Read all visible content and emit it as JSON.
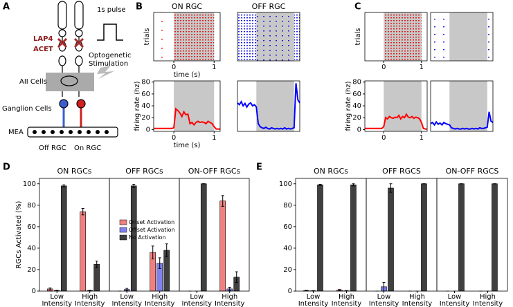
{
  "panel_labels": [
    "A",
    "B",
    "C",
    "D",
    "E"
  ],
  "diagram": {
    "pulse_label": "1s pulse",
    "drug_1": "LAP4",
    "drug_2": "ACET",
    "stim_1": "Optogenetic",
    "stim_2": "Stimulation",
    "aii": "AII Cells",
    "ganglion": "Ganglion Cells",
    "mea": "MEA",
    "off_rgc": "Off RGC",
    "on_rgc": "On RGC"
  },
  "chart_data": [
    {
      "type": "raster",
      "title": "ON RGC",
      "xlabel": "time (s)",
      "ylabel": "trials",
      "xlim": [
        -0.5,
        1.15
      ],
      "xticks": [
        0,
        1
      ],
      "stimulus": [
        0,
        1
      ],
      "color": "#e02020"
    },
    {
      "type": "raster",
      "title": "OFF RGC",
      "xlim": [
        -0.5,
        1.15
      ],
      "stimulus": [
        0,
        1
      ],
      "color": "#2020e0"
    },
    {
      "type": "raster",
      "ylabel": "trials",
      "xlim": [
        -0.5,
        1.15
      ],
      "xticks": [
        0,
        1
      ],
      "stimulus": [
        0,
        1
      ],
      "color": "#e02020"
    },
    {
      "type": "raster",
      "xlim": [
        -0.5,
        1.15
      ],
      "stimulus": [
        0,
        1
      ],
      "color": "#2020e0"
    },
    {
      "type": "line",
      "xlabel": "time (s)",
      "ylabel": "firing rate (hz)",
      "xlim": [
        -0.5,
        1.15
      ],
      "ylim": [
        -3,
        82
      ],
      "xticks": [
        0,
        1
      ],
      "yticks": [
        0,
        20,
        40,
        60,
        80
      ],
      "stimulus": [
        0,
        1
      ],
      "color": "#ff0000",
      "x": [
        -0.5,
        -0.45,
        -0.4,
        -0.35,
        -0.3,
        -0.25,
        -0.2,
        -0.15,
        -0.1,
        -0.05,
        0,
        0.05,
        0.1,
        0.15,
        0.2,
        0.25,
        0.3,
        0.35,
        0.4,
        0.45,
        0.5,
        0.55,
        0.6,
        0.65,
        0.7,
        0.75,
        0.8,
        0.85,
        0.9,
        0.95,
        1,
        1.05,
        1.1,
        1.15
      ],
      "values": [
        2,
        2,
        2,
        2,
        2,
        2,
        2,
        2,
        2,
        2,
        3,
        35,
        32,
        28,
        22,
        30,
        25,
        26,
        10,
        12,
        8,
        12,
        14,
        12,
        13,
        12,
        10,
        14,
        12,
        10,
        5,
        1,
        1,
        1
      ]
    },
    {
      "type": "line",
      "xlim": [
        -0.5,
        1.15
      ],
      "ylim": [
        -3,
        82
      ],
      "stimulus": [
        0,
        1
      ],
      "color": "#0000ff",
      "x": [
        -0.5,
        -0.45,
        -0.4,
        -0.35,
        -0.3,
        -0.25,
        -0.2,
        -0.15,
        -0.1,
        -0.05,
        0,
        0.05,
        0.1,
        0.15,
        0.2,
        0.25,
        0.3,
        0.35,
        0.4,
        0.45,
        0.5,
        0.55,
        0.6,
        0.65,
        0.7,
        0.75,
        0.8,
        0.85,
        0.9,
        0.95,
        1,
        1.05,
        1.1,
        1.15
      ],
      "values": [
        45,
        42,
        47,
        40,
        44,
        38,
        43,
        45,
        40,
        42,
        38,
        10,
        5,
        3,
        2,
        4,
        2,
        1,
        3,
        2,
        1,
        2,
        1,
        2,
        1,
        3,
        1,
        2,
        1,
        2,
        3,
        78,
        50,
        45
      ]
    },
    {
      "type": "line",
      "ylabel": "firing rate (hz)",
      "xlim": [
        -0.5,
        1.15
      ],
      "ylim": [
        -3,
        82
      ],
      "xticks": [
        0,
        1
      ],
      "yticks": [
        0,
        20,
        40,
        60,
        80
      ],
      "stimulus": [
        0,
        1
      ],
      "color": "#ff0000",
      "x": [
        -0.5,
        -0.45,
        -0.4,
        -0.35,
        -0.3,
        -0.25,
        -0.2,
        -0.15,
        -0.1,
        -0.05,
        0,
        0.05,
        0.1,
        0.15,
        0.2,
        0.25,
        0.3,
        0.35,
        0.4,
        0.45,
        0.5,
        0.55,
        0.6,
        0.65,
        0.7,
        0.75,
        0.8,
        0.85,
        0.9,
        0.95,
        1,
        1.05,
        1.1,
        1.15
      ],
      "values": [
        2,
        2,
        2,
        2,
        2,
        2,
        2,
        2,
        2,
        2,
        5,
        20,
        18,
        22,
        20,
        19,
        21,
        20,
        24,
        18,
        22,
        20,
        26,
        21,
        20,
        22,
        19,
        21,
        20,
        18,
        12,
        2,
        1,
        1
      ]
    },
    {
      "type": "line",
      "xlim": [
        -0.5,
        1.15
      ],
      "ylim": [
        -3,
        82
      ],
      "stimulus": [
        0,
        1
      ],
      "color": "#0000ff",
      "x": [
        -0.5,
        -0.45,
        -0.4,
        -0.35,
        -0.3,
        -0.25,
        -0.2,
        -0.15,
        -0.1,
        -0.05,
        0,
        0.05,
        0.1,
        0.15,
        0.2,
        0.25,
        0.3,
        0.35,
        0.4,
        0.45,
        0.5,
        0.55,
        0.6,
        0.65,
        0.7,
        0.75,
        0.8,
        0.85,
        0.9,
        0.95,
        1,
        1.05,
        1.1,
        1.15
      ],
      "values": [
        10,
        12,
        8,
        13,
        9,
        11,
        8,
        12,
        10,
        9,
        8,
        3,
        2,
        1,
        2,
        1,
        1,
        2,
        1,
        2,
        1,
        1,
        2,
        1,
        2,
        1,
        3,
        2,
        2,
        3,
        4,
        30,
        14,
        12
      ]
    },
    {
      "type": "bar",
      "title": "ON RGCs",
      "ylabel": "RGCs Activated (%)",
      "categories": [
        "Low Intensity",
        "High Intensity"
      ],
      "ylim": [
        0,
        105
      ],
      "yticks": [
        0,
        20,
        40,
        60,
        80,
        100
      ],
      "series": [
        {
          "color": "#f08080",
          "values": [
            2,
            74
          ],
          "errors": [
            1,
            3
          ]
        },
        {
          "color": "#8080f0",
          "values": [
            0.5,
            0.5
          ],
          "errors": [
            0.3,
            0.3
          ]
        },
        {
          "color": "#404040",
          "values": [
            98,
            25
          ],
          "errors": [
            1,
            3
          ]
        }
      ]
    },
    {
      "type": "bar",
      "title": "OFF RGCs",
      "categories": [
        "Low Intensity",
        "High Intensity"
      ],
      "ylim": [
        0,
        105
      ],
      "legend": "center right",
      "series": [
        {
          "name": "Onset Activation",
          "color": "#f08080",
          "values": [
            0,
            36
          ],
          "errors": [
            0,
            6
          ]
        },
        {
          "name": "Offset Activation",
          "color": "#8080f0",
          "values": [
            1.5,
            26
          ],
          "errors": [
            1,
            5
          ]
        },
        {
          "name": "No Activation",
          "color": "#404040",
          "values": [
            98,
            38
          ],
          "errors": [
            1.5,
            6
          ]
        }
      ]
    },
    {
      "type": "bar",
      "title": "ON-OFF RGCs",
      "categories": [
        "Low Intensity",
        "High Intensity"
      ],
      "ylim": [
        0,
        105
      ],
      "series": [
        {
          "color": "#f08080",
          "values": [
            0,
            84
          ],
          "errors": [
            0,
            5
          ]
        },
        {
          "color": "#8080f0",
          "values": [
            0,
            2
          ],
          "errors": [
            0,
            1.5
          ]
        },
        {
          "color": "#404040",
          "values": [
            100,
            13
          ],
          "errors": [
            0,
            5
          ]
        }
      ]
    },
    {
      "type": "bar",
      "title": "ON RGCs",
      "categories": [
        "Low Intensity",
        "High Intensity"
      ],
      "ylim": [
        0,
        105
      ],
      "yticks": [
        0,
        20,
        40,
        60,
        80,
        100
      ],
      "series": [
        {
          "color": "#f08080",
          "values": [
            0.5,
            1
          ],
          "errors": [
            0.3,
            0.5
          ]
        },
        {
          "color": "#8080f0",
          "values": [
            0.3,
            0.3
          ],
          "errors": [
            0.2,
            0.2
          ]
        },
        {
          "color": "#404040",
          "values": [
            99,
            99
          ],
          "errors": [
            0.5,
            1
          ]
        }
      ]
    },
    {
      "type": "bar",
      "title": "OFF RGCS",
      "categories": [
        "Low Intensity",
        "High Intensity"
      ],
      "ylim": [
        0,
        105
      ],
      "series": [
        {
          "color": "#f08080",
          "values": [
            0,
            0
          ],
          "errors": [
            0,
            0
          ]
        },
        {
          "color": "#8080f0",
          "values": [
            4,
            0
          ],
          "errors": [
            4,
            0
          ]
        },
        {
          "color": "#404040",
          "values": [
            96,
            100
          ],
          "errors": [
            4,
            0
          ]
        }
      ]
    },
    {
      "type": "bar",
      "title": "ON-OFF RGCS",
      "categories": [
        "Low Intensity",
        "High Intensity"
      ],
      "ylim": [
        0,
        105
      ],
      "series": [
        {
          "color": "#f08080",
          "values": [
            0,
            0
          ],
          "errors": [
            0,
            0
          ]
        },
        {
          "color": "#8080f0",
          "values": [
            0,
            0
          ],
          "errors": [
            0,
            0
          ]
        },
        {
          "color": "#404040",
          "values": [
            100,
            100
          ],
          "errors": [
            0,
            0
          ]
        }
      ]
    }
  ]
}
